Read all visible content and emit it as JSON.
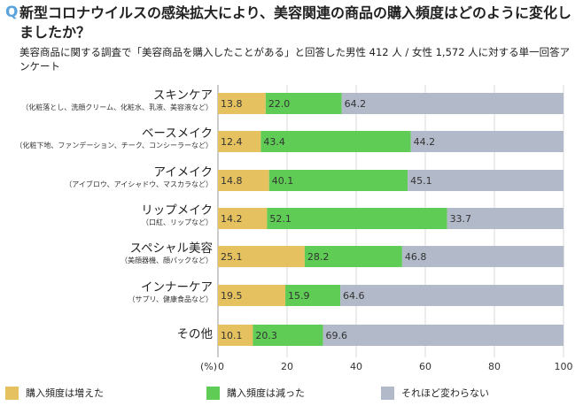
{
  "header": {
    "q_mark": "Q",
    "title": "新型コロナウイルスの感染拡大により、美容関連の商品の購入頻度はどのように変化しましたか？",
    "subtitle": "美容商品に関する調査で「美容商品を購入したことがある」と回答した男性 412 人 / 女性 1,572 人に対する単一回答アンケート"
  },
  "chart_data": {
    "type": "bar",
    "orientation": "horizontal",
    "stacked": true,
    "categories": [
      {
        "label": "スキンケア",
        "note": "（化粧落とし、洗顔クリーム、化粧水、乳液、美容液など）"
      },
      {
        "label": "ベースメイク",
        "note": "（化粧下地、ファンデーション、チーク、コンシーラーなど）"
      },
      {
        "label": "アイメイク",
        "note": "（アイブロウ、アイシャドウ、マスカラなど）"
      },
      {
        "label": "リップメイク",
        "note": "（口紅、リップなど）"
      },
      {
        "label": "スペシャル美容",
        "note": "（美顔器機、顔パックなど）"
      },
      {
        "label": "インナーケア",
        "note": "（サプリ、健康食品など）"
      },
      {
        "label": "その他",
        "note": ""
      }
    ],
    "series": [
      {
        "name": "購入頻度は増えた",
        "color": "#e5c25f",
        "values": [
          13.8,
          12.4,
          14.8,
          14.2,
          25.1,
          19.5,
          10.1
        ]
      },
      {
        "name": "購入頻度は減った",
        "color": "#5fcd55",
        "values": [
          22.0,
          43.4,
          40.1,
          52.1,
          28.2,
          15.9,
          20.3
        ]
      },
      {
        "name": "それほど変わらない",
        "color": "#b2b9c8",
        "values": [
          64.2,
          44.2,
          45.1,
          33.7,
          46.8,
          64.6,
          69.6
        ]
      }
    ],
    "xlabel": "(%)",
    "xlim": [
      0,
      100
    ],
    "xticks": [
      0,
      20,
      40,
      60,
      80,
      100
    ],
    "grid": true,
    "legend_position": "bottom"
  }
}
